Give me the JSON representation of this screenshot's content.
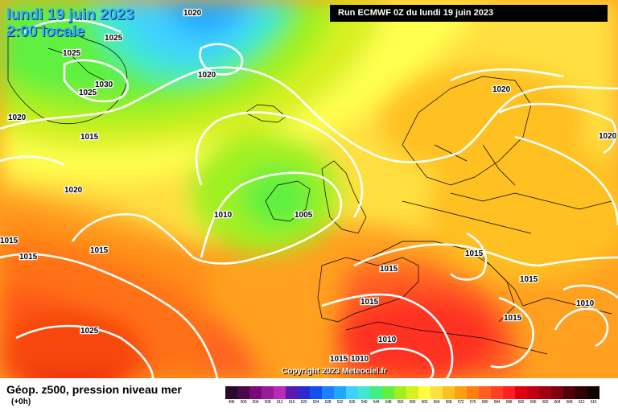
{
  "header": {
    "date_line": "lundi 19 juin 2023",
    "time_line": "2:00 locale",
    "run_label": "Run ECMWF 0Z du lundi 19 juin 2023"
  },
  "footer": {
    "product_title": "Géop. z500, pression niveau mer",
    "forecast_offset": "(+0h)",
    "copyright": "Copyright 2023 Meteociel.fr"
  },
  "isobar_labels": [
    "1020",
    "1025",
    "1025",
    "1030",
    "1025",
    "1020",
    "1020",
    "1015",
    "1020",
    "1010",
    "1005",
    "1015",
    "1015",
    "1015",
    "1015",
    "1020",
    "1020",
    "1015",
    "1015",
    "1015",
    "1010",
    "1015",
    "1025",
    "1010",
    "1015",
    "1010"
  ],
  "legend": {
    "ticks": [
      "496",
      "500",
      "504",
      "508",
      "512",
      "516",
      "520",
      "524",
      "528",
      "532",
      "536",
      "540",
      "544",
      "548",
      "552",
      "556",
      "560",
      "564",
      "568",
      "572",
      "576",
      "580",
      "584",
      "588",
      "592",
      "596",
      "600",
      "604",
      "608",
      "612",
      "616"
    ],
    "colors": [
      "#2a0a2a",
      "#4a0a4a",
      "#7a0a7a",
      "#9a1a9a",
      "#b82ab8",
      "#5a1ab0",
      "#2a2ad0",
      "#1050f0",
      "#1a80ff",
      "#20a8ff",
      "#40d0ff",
      "#40e8d0",
      "#40f080",
      "#60f040",
      "#a0f020",
      "#d8f020",
      "#ffff40",
      "#ffe040",
      "#ffc020",
      "#ffa010",
      "#ff8010",
      "#ff6020",
      "#ff4020",
      "#ff2020",
      "#e00010",
      "#c00010",
      "#a00010",
      "#800010",
      "#500008",
      "#300004",
      "#100000"
    ]
  }
}
